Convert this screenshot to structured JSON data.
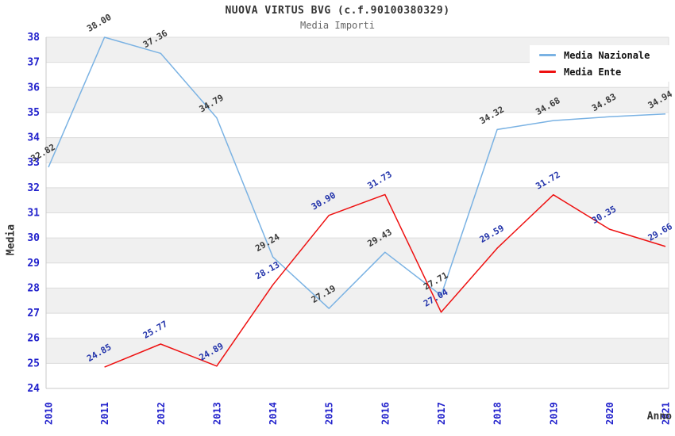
{
  "header": {
    "title": "NUOVA VIRTUS BVG (c.f.90100380329)",
    "subtitle": "Media Importi"
  },
  "legend": {
    "items": [
      {
        "label": "Media Nazionale"
      },
      {
        "label": "Media Ente"
      }
    ]
  },
  "colors": {
    "band": "#f0f0f0",
    "gridline": "#dcdcdc",
    "axis": "#c8c8c8",
    "tick_label": "#2222cc",
    "title": "#333333",
    "subtitle": "#666666"
  },
  "chart_data": {
    "type": "line",
    "title": "NUOVA VIRTUS BVG (c.f.90100380329)",
    "subtitle": "Media Importi",
    "xlabel": "Anno",
    "ylabel": "Media",
    "x": [
      2010,
      2011,
      2012,
      2013,
      2014,
      2015,
      2016,
      2017,
      2018,
      2019,
      2020,
      2021
    ],
    "series": [
      {
        "name": "Media Nazionale",
        "color": "#7ab2e3",
        "label_color": "#3a3a3a",
        "values": [
          32.82,
          38.0,
          37.36,
          34.79,
          29.24,
          27.19,
          29.43,
          27.71,
          34.32,
          34.68,
          34.83,
          34.94
        ]
      },
      {
        "name": "Media Ente",
        "color": "#ee1111",
        "label_color": "#2233aa",
        "values": [
          null,
          24.85,
          25.77,
          24.89,
          28.13,
          30.9,
          31.73,
          27.04,
          29.59,
          31.72,
          30.35,
          29.66
        ]
      }
    ],
    "ylim": [
      24,
      38
    ],
    "ytick_step": 1,
    "grid": "horizontal-bands-alternating",
    "legend_position": "top-right",
    "point_label_format": "2-decimals",
    "point_label_rotation_deg": -30
  }
}
